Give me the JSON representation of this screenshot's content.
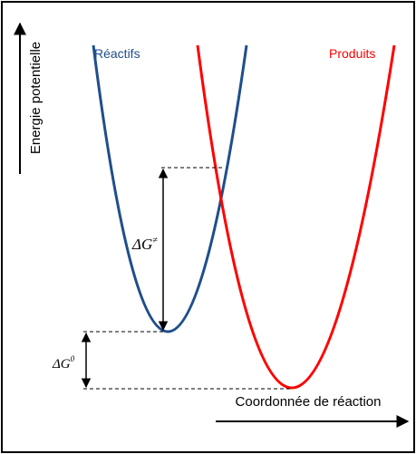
{
  "axes": {
    "y_label": "Energie potentielle",
    "x_label": "Coordonnée de réaction"
  },
  "curves": {
    "reactants": "Réactifs",
    "products": "Produits"
  },
  "annotations": {
    "activation": {
      "symbol": "ΔG",
      "superscript": "≠"
    },
    "reaction": {
      "symbol": "ΔG",
      "superscript": "0"
    }
  }
}
